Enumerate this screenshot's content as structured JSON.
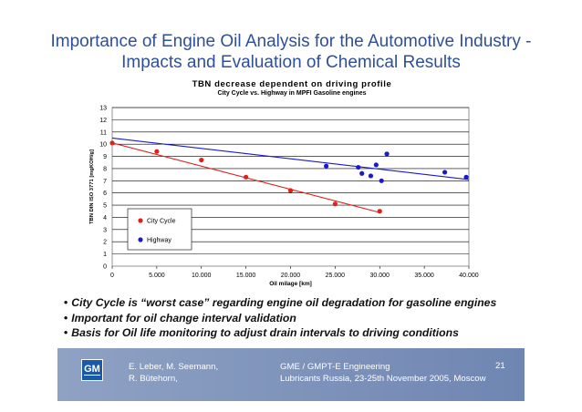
{
  "slide": {
    "title_line1": "Importance of Engine Oil Analysis for the Automotive Industry -",
    "title_line2": "Impacts and Evaluation of Chemical Results"
  },
  "chart_data": {
    "type": "scatter",
    "title": "TBN decrease dependent on driving profile",
    "subtitle": "City Cycle vs. Highway in MPFI Gasoline engines",
    "xlabel": "Oil milage [km]",
    "ylabel": "TBN DIN ISO 3771 [mgKOH/g]",
    "xlim": [
      0,
      40000
    ],
    "ylim": [
      0,
      13
    ],
    "x_ticks": [
      0,
      5000,
      10000,
      15000,
      20000,
      25000,
      30000,
      35000,
      40000
    ],
    "x_tick_labels": [
      "0",
      "5.000",
      "10.000",
      "15.000",
      "20.000",
      "25.000",
      "30.000",
      "35.000",
      "40.000"
    ],
    "y_ticks": [
      0,
      1,
      2,
      3,
      4,
      5,
      6,
      7,
      8,
      9,
      10,
      11,
      12,
      13
    ],
    "y_tick_labels": [
      "0",
      "1",
      "2",
      "3",
      "4",
      "5",
      "6",
      "7",
      "8",
      "9",
      "10",
      "11",
      "12",
      "13"
    ],
    "grid": "horizontal",
    "legend_position": "lower-left inside",
    "series": [
      {
        "name": "City Cycle",
        "color": "#e0201b",
        "points": [
          [
            0,
            10.1
          ],
          [
            5000,
            9.4
          ],
          [
            10000,
            8.7
          ],
          [
            15000,
            7.3
          ],
          [
            20000,
            6.2
          ],
          [
            25000,
            5.1
          ],
          [
            30000,
            4.5
          ]
        ],
        "trendline": [
          [
            0,
            10.1
          ],
          [
            30000,
            4.4
          ]
        ]
      },
      {
        "name": "Highway",
        "color": "#1a1ac8",
        "points": [
          [
            24000,
            8.2
          ],
          [
            27600,
            8.1
          ],
          [
            28000,
            7.6
          ],
          [
            29000,
            7.4
          ],
          [
            29600,
            8.3
          ],
          [
            30200,
            7.0
          ],
          [
            30800,
            9.2
          ],
          [
            37300,
            7.7
          ],
          [
            39700,
            7.3
          ]
        ],
        "trendline": [
          [
            0,
            10.5
          ],
          [
            40000,
            7.1
          ]
        ]
      }
    ]
  },
  "bullets": [
    "City Cycle is “worst case” regarding  engine oil degradation for gasoline engines",
    "Important for oil change interval validation",
    "Basis for Oil life monitoring to adjust drain intervals to driving conditions"
  ],
  "footer": {
    "logo_text": "GM",
    "authors_line1": "E. Leber, M. Seemann,",
    "authors_line2": "R. Bütehorn,",
    "org_line1": "GME / GMPT-E Engineering",
    "org_line2": "Lubricants Russia, 23-25th November 2005, Moscow",
    "page_number": "21"
  },
  "colors": {
    "title": "#2f4f9a",
    "footer_bar": "#7d92bb",
    "plot_background": "#ffffff"
  }
}
